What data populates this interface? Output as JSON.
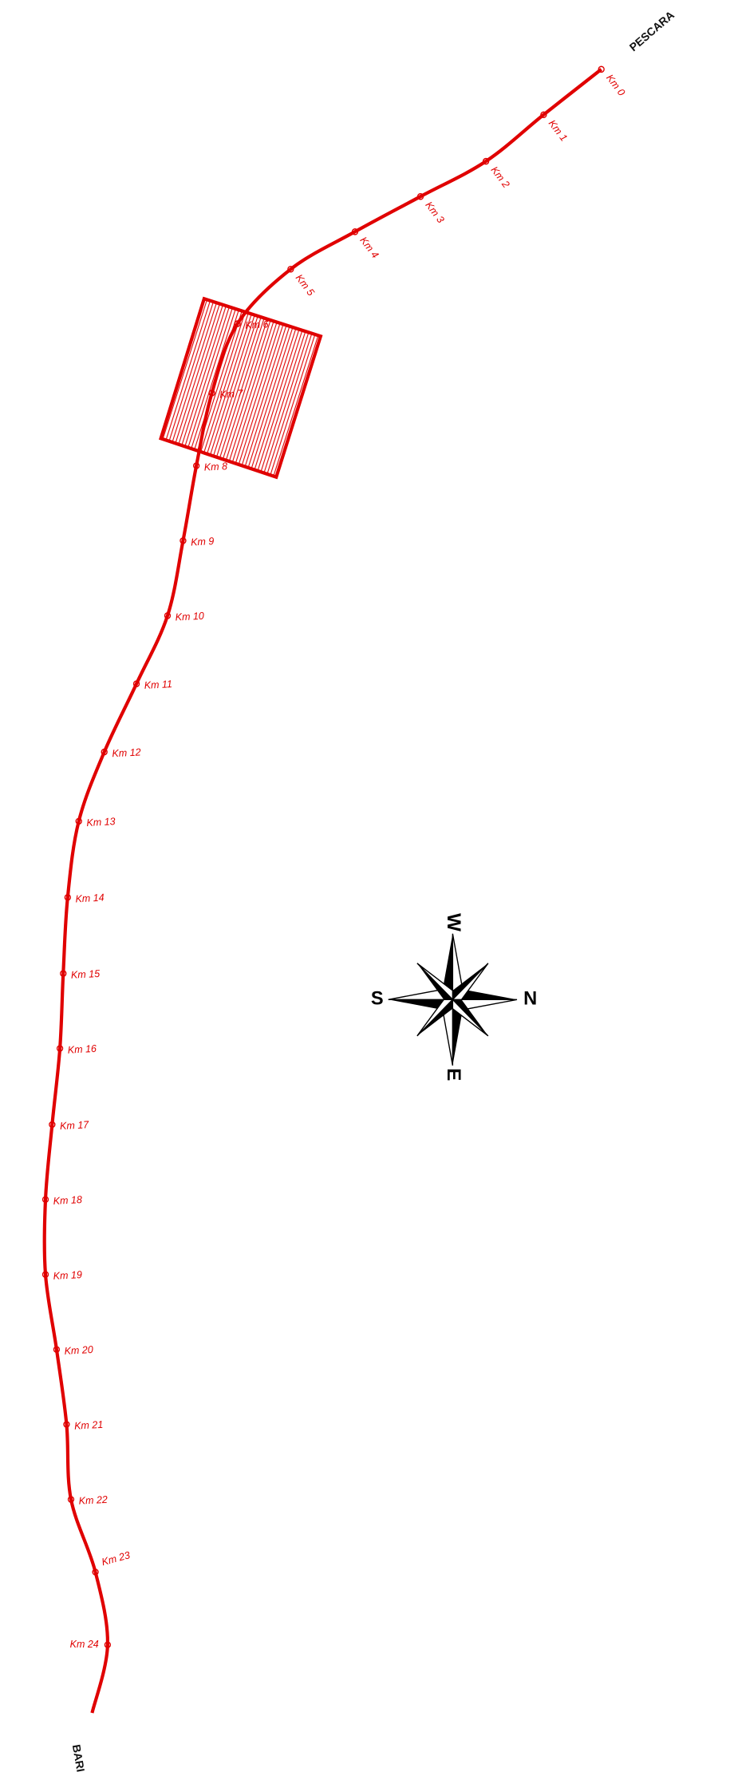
{
  "ends": {
    "north": "PESCARA",
    "south": "BARI"
  },
  "markers": [
    "Km 0",
    "Km 1",
    "Km 2",
    "Km 3",
    "Km 4",
    "Km 5",
    "Km 6",
    "Km 7",
    "Km 8",
    "Km 9",
    "Km 10",
    "Km 11",
    "Km 12",
    "Km 13",
    "Km 14",
    "Km 15",
    "Km 16",
    "Km 17",
    "Km 18",
    "Km 19",
    "Km 20",
    "Km 21",
    "Km 22",
    "Km 23",
    "Km 24"
  ],
  "compass": {
    "n": "N",
    "s": "S",
    "w": "W",
    "e": "E"
  }
}
